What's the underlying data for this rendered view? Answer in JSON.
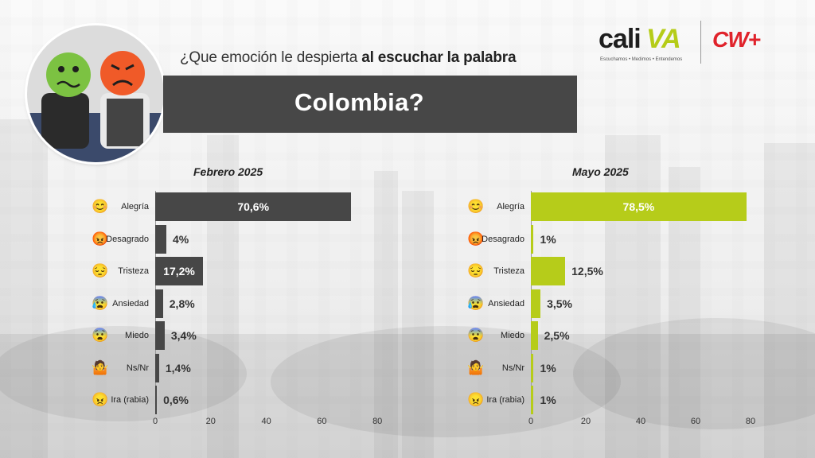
{
  "header": {
    "question_regular": "¿Que emoción le despierta",
    "question_bold": "al escuchar la palabra",
    "banner_word": "Colombia?"
  },
  "logos": {
    "cali_part1": "cali",
    "cali_part2": "VA",
    "cali_tagline": "Escuchamos • Medimos • Entendemos",
    "cw": "CW+"
  },
  "colors": {
    "february_bar": "#474747",
    "may_bar": "#b6cc1a",
    "banner": "#474747",
    "cw_red": "#e0232b"
  },
  "chart_data": [
    {
      "type": "bar",
      "orientation": "horizontal",
      "title": "Febrero 2025",
      "categories": [
        "Alegría",
        "Desagrado",
        "Tristeza",
        "Ansiedad",
        "Miedo",
        "Ns/Nr",
        "Ira (rabia)"
      ],
      "values": [
        70.6,
        4,
        17.2,
        2.8,
        3.4,
        1.4,
        0.6
      ],
      "value_labels": [
        "70,6%",
        "4%",
        "17,2%",
        "2,8%",
        "3,4%",
        "1,4%",
        "0,6%"
      ],
      "xlim": [
        0,
        80
      ],
      "xticks": [
        "0",
        "20",
        "40",
        "60",
        "80"
      ],
      "grid": false,
      "legend": "none"
    },
    {
      "type": "bar",
      "orientation": "horizontal",
      "title": "Mayo 2025",
      "categories": [
        "Alegría",
        "Desagrado",
        "Tristeza",
        "Ansiedad",
        "Miedo",
        "Ns/Nr",
        "Ira (rabia)"
      ],
      "values": [
        78.5,
        1,
        12.5,
        3.5,
        2.5,
        1,
        1
      ],
      "value_labels": [
        "78,5%",
        "1%",
        "12,5%",
        "3,5%",
        "2,5%",
        "1%",
        "1%"
      ],
      "xlim": [
        0,
        80
      ],
      "xticks": [
        "0",
        "20",
        "40",
        "60",
        "80"
      ],
      "grid": false,
      "legend": "none"
    }
  ],
  "emoji_icons": [
    "😊",
    "😡",
    "😔",
    "😰",
    "😨",
    "🤷",
    "😠"
  ],
  "emoji_icon_names": [
    "smiling-face-icon",
    "angry-face-icon",
    "pensive-face-icon",
    "anxious-face-icon",
    "fearful-face-icon",
    "shrug-person-icon",
    "angry-red-face-icon"
  ]
}
